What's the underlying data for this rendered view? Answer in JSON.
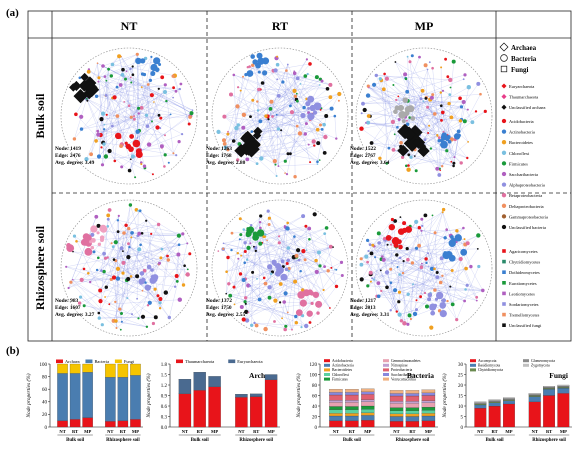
{
  "panel_a": {
    "label": "(a)",
    "columns": [
      "NT",
      "RT",
      "MP"
    ],
    "rows": [
      "Bulk soil",
      "Rhizosphere soil"
    ],
    "networks": [
      {
        "node": "Node: 1419",
        "edge": "Edge: 2476",
        "deg": "Avg. degree: 3.49"
      },
      {
        "node": "Node: 1263",
        "edge": "Edge: 1768",
        "deg": "Avg. degree: 2.80"
      },
      {
        "node": "Node: 1522",
        "edge": "Edge: 2767",
        "deg": "Avg. degree: 3.64"
      },
      {
        "node": "Node: 983",
        "edge": "Edge: 1607",
        "deg": "Avg. degree: 3.27"
      },
      {
        "node": "Node: 1372",
        "edge": "Edge: 1750",
        "deg": "Avg. degree: 2.55"
      },
      {
        "node": "Node: 1217",
        "edge": "Edge: 2013",
        "deg": "Avg. degree: 3.31"
      }
    ],
    "shape_legend": [
      {
        "shape": "diamond",
        "label": "Archaea"
      },
      {
        "shape": "circle",
        "label": "Bacteria"
      },
      {
        "shape": "square",
        "label": "Fungi"
      }
    ],
    "legend_groups": [
      {
        "items": [
          {
            "label": "Euryarchaeota",
            "color": "#e8141a",
            "shape": "diamond"
          },
          {
            "label": "Thaumarchaeota",
            "color": "#e83d8a",
            "shape": "diamond"
          },
          {
            "label": "Unclassified archaea",
            "color": "#111111",
            "shape": "diamond"
          }
        ]
      },
      {
        "items": [
          {
            "label": "Acidobacteria",
            "color": "#e8141a",
            "shape": "circle"
          },
          {
            "label": "Actinobacteria",
            "color": "#3a7fd0",
            "shape": "circle"
          },
          {
            "label": "Bacteroidetes",
            "color": "#f0a020",
            "shape": "circle"
          },
          {
            "label": "Chloroflexi",
            "color": "#7ac0e0",
            "shape": "circle"
          },
          {
            "label": "Firmicutes",
            "color": "#1a9a3a",
            "shape": "circle"
          },
          {
            "label": "Saccharibacteria",
            "color": "#b05fc0",
            "shape": "circle"
          },
          {
            "label": "Alphaproteobacteria",
            "color": "#9090e0",
            "shape": "circle"
          },
          {
            "label": "Betaproteobacteria",
            "color": "#e070a0",
            "shape": "circle"
          },
          {
            "label": "Deltaproteobacteria",
            "color": "#f09060",
            "shape": "circle"
          },
          {
            "label": "Gammaproteobacteria",
            "color": "#a06030",
            "shape": "circle"
          },
          {
            "label": "Unclassified bacteria",
            "color": "#111111",
            "shape": "circle"
          }
        ]
      },
      {
        "items": [
          {
            "label": "Agaricomycetes",
            "color": "#e8141a",
            "shape": "square"
          },
          {
            "label": "Chytridiomycetes",
            "color": "#2a8a6a",
            "shape": "square"
          },
          {
            "label": "Dothideomycetes",
            "color": "#3a7fd0",
            "shape": "square"
          },
          {
            "label": "Eurotiomycetes",
            "color": "#1a9a3a",
            "shape": "square"
          },
          {
            "label": "Leotiomycetes",
            "color": "#b05fc0",
            "shape": "square"
          },
          {
            "label": "Sordariomycetes",
            "color": "#9090e0",
            "shape": "square"
          },
          {
            "label": "Tremellomycetes",
            "color": "#f09060",
            "shape": "square"
          },
          {
            "label": "Unclassified fungi",
            "color": "#111111",
            "shape": "square"
          }
        ]
      }
    ]
  },
  "panel_b_label": "(b)",
  "chart_data": [
    {
      "type": "bar",
      "stacked": true,
      "title": "",
      "ylabel": "Node properties (%)",
      "ylim": [
        0,
        100
      ],
      "yticks": [
        "0",
        "20",
        "40",
        "60",
        "80",
        "100"
      ],
      "categories": [
        "NT",
        "RT",
        "MP",
        "NT",
        "RT",
        "MP"
      ],
      "groups": [
        "Bulk soil",
        "Rhizosphere soil"
      ],
      "series": [
        {
          "name": "Archaea",
          "color": "#e8141a",
          "values": [
            10,
            12,
            15,
            9,
            10,
            12
          ]
        },
        {
          "name": "Bacteria",
          "color": "#4a7db0",
          "values": [
            75,
            73,
            72,
            70,
            69,
            70
          ]
        },
        {
          "name": "Fungi",
          "color": "#f5c400",
          "values": [
            15,
            15,
            13,
            21,
            21,
            18
          ]
        }
      ],
      "legend": "top"
    },
    {
      "type": "bar",
      "stacked": true,
      "title": "Archaea",
      "ylabel": "Node properties (%)",
      "ylim": [
        0,
        1.8
      ],
      "yticks": [
        "0.0",
        "0.3",
        "0.6",
        "0.9",
        "1.2",
        "1.5",
        "1.8"
      ],
      "categories": [
        "NT",
        "RT",
        "MP",
        "NT",
        "RT",
        "MP"
      ],
      "groups": [
        "Bulk soil",
        "Rhizosphere soil"
      ],
      "series": [
        {
          "name": "Thaumarchaeota",
          "color": "#e8141a",
          "values": [
            0.95,
            1.05,
            1.15,
            0.85,
            0.87,
            1.35
          ]
        },
        {
          "name": "Euryarchaeota",
          "color": "#4a6a90",
          "values": [
            0.42,
            0.52,
            0.3,
            0.09,
            0.08,
            0.15
          ]
        }
      ],
      "legend": "top"
    },
    {
      "type": "bar",
      "stacked": true,
      "title": "Bacteria",
      "ylabel": "Node properties (%)",
      "ylim": [
        0,
        120
      ],
      "yticks": [
        "0",
        "20",
        "40",
        "60",
        "80",
        "100",
        "120"
      ],
      "categories": [
        "NT",
        "RT",
        "MP",
        "NT",
        "RT",
        "MP"
      ],
      "groups": [
        "Bulk soil",
        "Rhizosphere soil"
      ],
      "series": [
        {
          "name": "Acidobacteria",
          "color": "#e8141a",
          "values": [
            12,
            12,
            13,
            11,
            11,
            12
          ]
        },
        {
          "name": "Actinobacteria",
          "color": "#4a7db0",
          "values": [
            9,
            9,
            9,
            9,
            9,
            9
          ]
        },
        {
          "name": "Bacteroidetes",
          "color": "#f0a020",
          "values": [
            5,
            5,
            5,
            5,
            5,
            5
          ]
        },
        {
          "name": "Chloroflexi",
          "color": "#5ad0a0",
          "values": [
            7,
            7,
            7,
            6,
            6,
            6
          ]
        },
        {
          "name": "Firmicutes",
          "color": "#1a9a3a",
          "values": [
            6,
            6,
            6,
            6,
            6,
            6
          ]
        },
        {
          "name": "Gemmatimonadetes",
          "color": "#e8a0b0",
          "values": [
            8,
            8,
            8,
            8,
            8,
            8
          ]
        },
        {
          "name": "Nitrospirae",
          "color": "#c0a0d0",
          "values": [
            4,
            4,
            4,
            4,
            4,
            4
          ]
        },
        {
          "name": "Proteobacteria",
          "color": "#e06070",
          "values": [
            10,
            10,
            10,
            10,
            10,
            10
          ]
        },
        {
          "name": "Saccharibacteria",
          "color": "#8888dd",
          "values": [
            5,
            5,
            5,
            5,
            5,
            5
          ]
        },
        {
          "name": "Verrucomicrobia",
          "color": "#f0b080",
          "values": [
            6,
            6,
            6,
            6,
            6,
            6
          ]
        }
      ],
      "legend": "top"
    },
    {
      "type": "bar",
      "stacked": true,
      "title": "Fungi",
      "ylabel": "Node properties (%)",
      "ylim": [
        0,
        30
      ],
      "yticks": [
        "0",
        "5",
        "10",
        "15",
        "20",
        "25",
        "30"
      ],
      "categories": [
        "NT",
        "RT",
        "MP",
        "NT",
        "RT",
        "MP"
      ],
      "groups": [
        "Bulk soil",
        "Rhizosphere soil"
      ],
      "series": [
        {
          "name": "Ascomycota",
          "color": "#e8141a",
          "values": [
            9,
            10,
            11,
            12,
            15,
            16
          ]
        },
        {
          "name": "Basidiomycota",
          "color": "#4a7db0",
          "values": [
            1.5,
            1.5,
            1.5,
            2.5,
            3,
            2.5
          ]
        },
        {
          "name": "Chytridiomycota",
          "color": "#6a8a50",
          "values": [
            0.5,
            0.5,
            0.5,
            0.5,
            0.5,
            0.5
          ]
        },
        {
          "name": "Glomeromycota",
          "color": "#8a8a8a",
          "values": [
            0.5,
            0.5,
            0.5,
            0.5,
            0.5,
            0.5
          ]
        },
        {
          "name": "Zygomycota",
          "color": "#c0c0c0",
          "values": [
            0.5,
            0.5,
            0.5,
            0.5,
            0.5,
            0.5
          ]
        }
      ],
      "legend": "top"
    }
  ]
}
